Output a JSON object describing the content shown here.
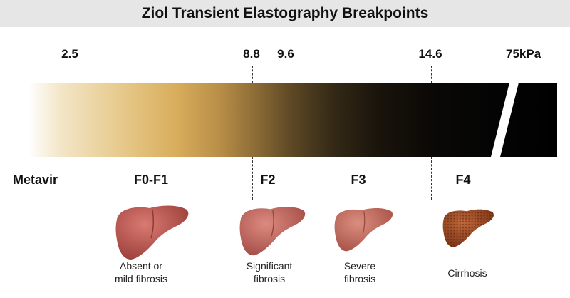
{
  "title": "Ziol Transient Elastography Breakpoints",
  "ticks": [
    "2.5",
    "8.8",
    "9.6",
    "14.6",
    "75kPa"
  ],
  "scale_label": "Metavir",
  "stages": [
    "F0-F1",
    "F2",
    "F3",
    "F4"
  ],
  "captions": [
    {
      "line1": "Absent or",
      "line2": "mild fibrosis"
    },
    {
      "line1": "Significant",
      "line2": "fibrosis"
    },
    {
      "line1": "Severe",
      "line2": "fibrosis"
    },
    {
      "line1": "Cirrhosis",
      "line2": ""
    }
  ],
  "liver_icons": [
    "healthy-liver-icon",
    "mild-fibrotic-liver-icon",
    "fibrotic-liver-icon",
    "cirrhotic-liver-icon"
  ],
  "colors": {
    "title_bg": "#e6e6e6",
    "gradient_light": "#d8ad5c",
    "gradient_dark": "#000000",
    "liver_healthy": "#b65450",
    "liver_cirrhotic": "#8a3a1c"
  }
}
